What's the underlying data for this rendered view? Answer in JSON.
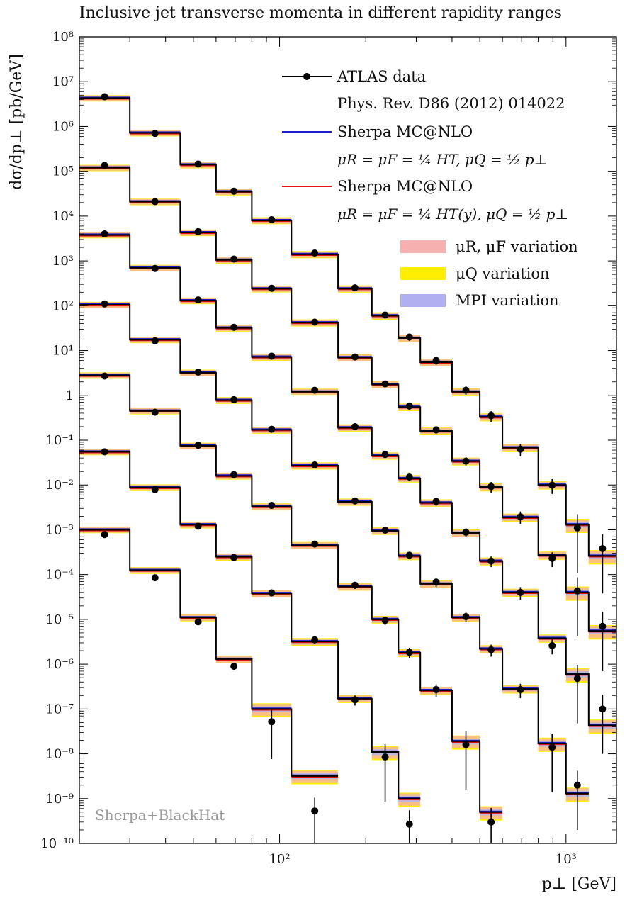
{
  "title": "Inclusive jet transverse momenta in different rapidity ranges",
  "watermark": "Sherpa+BlackHat",
  "legend": {
    "data_line1": "ATLAS data",
    "data_line2": "Phys. Rev. D86 (2012) 014022",
    "sherpa1_line1": "Sherpa MC@NLO",
    "sherpa1_line2": "μR = μF = ¼ HT,   μQ = ½ p⊥",
    "sherpa2_line1": "Sherpa MC@NLO",
    "sherpa2_line2": "μR = μF = ¼ HT(y),   μQ = ½ p⊥",
    "band_scale": "μR, μF variation",
    "band_q": "μQ variation",
    "band_mpi": "MPI variation"
  },
  "colors": {
    "data": "#000000",
    "sherpa1": "#1a1acc",
    "sherpa2": "#e01010",
    "band_scale": "#f7b0b0",
    "band_q": "#ffee00",
    "band_mpi": "#b0b0f0"
  },
  "chart_data": {
    "type": "line",
    "xlabel": "p⊥ [GeV]",
    "ylabel": "dσ/dp⊥ [pb/GeV]",
    "xscale": "log",
    "yscale": "log",
    "xlim": [
      20,
      1500
    ],
    "ylim": [
      1e-10,
      100000000.0
    ],
    "x_ticks": [
      100,
      1000
    ],
    "x_tick_labels": [
      "10²",
      "10³"
    ],
    "y_ticks": [
      1e-10,
      1e-09,
      1e-08,
      1e-07,
      1e-06,
      1e-05,
      0.0001,
      0.001,
      0.01,
      0.1,
      1,
      10,
      100,
      1000,
      10000,
      100000,
      1000000,
      10000000,
      100000000
    ],
    "y_tick_labels": [
      "10⁻¹⁰",
      "10⁻⁹",
      "10⁻⁸",
      "10⁻⁷",
      "10⁻⁶",
      "10⁻⁵",
      "10⁻⁴",
      "10⁻³",
      "10⁻²",
      "10⁻¹",
      "1",
      "10¹",
      "10²",
      "10³",
      "10⁴",
      "10⁵",
      "10⁶",
      "10⁷",
      "10⁸"
    ],
    "bin_edges": [
      20,
      30,
      45,
      60,
      80,
      110,
      160,
      210,
      260,
      310,
      400,
      500,
      600,
      800,
      1000,
      1200,
      1500
    ],
    "series": [
      {
        "first_bin": 0,
        "sherpa": [
          4300000.0,
          720000.0,
          140000.0,
          35000.0,
          8000.0,
          1400.0,
          240.0,
          60.0,
          19.0,
          5.5,
          1.2,
          0.33,
          0.068,
          0.01,
          0.0013,
          0.00026
        ],
        "data": [
          4600000.0,
          700000.0,
          145000.0,
          36000.0,
          8300.0,
          1500.0,
          250.0,
          62.0,
          20.0,
          6.0,
          1.3,
          0.35,
          0.063,
          0.0099,
          0.0011,
          0.00038
        ]
      },
      {
        "first_bin": 0,
        "sherpa": [
          120000.0,
          21000.0,
          4300.0,
          1050.0,
          240.0,
          42.0,
          7.0,
          1.75,
          0.55,
          0.16,
          0.034,
          0.009,
          0.0019,
          0.00027,
          4e-05,
          5.5e-06
        ],
        "data": [
          135000.0,
          21000.0,
          4500.0,
          1100.0,
          245.0,
          43.0,
          7.2,
          1.8,
          0.58,
          0.17,
          0.034,
          0.0092,
          0.00195,
          0.00023,
          4.3e-05,
          7e-06
        ]
      },
      {
        "first_bin": 0,
        "sherpa": [
          3800.0,
          700.0,
          130.0,
          32.0,
          7.2,
          1.2,
          0.19,
          0.045,
          0.014,
          0.004,
          0.00085,
          0.0002,
          4e-05,
          3.8e-06,
          6e-07,
          4.3e-08
        ],
        "data": [
          4000.0,
          680.0,
          135.0,
          33.0,
          7.5,
          1.3,
          0.2,
          0.048,
          0.015,
          0.0043,
          0.00088,
          0.0002,
          4e-05,
          2.6e-06,
          4.8e-07,
          1e-07
        ]
      },
      {
        "first_bin": 0,
        "sherpa": [
          105.0,
          17.5,
          3.2,
          0.78,
          0.17,
          0.027,
          0.0042,
          0.00095,
          0.00026,
          6.2e-05,
          1.1e-05,
          2.2e-06,
          2.8e-07,
          1.7e-08,
          1.3e-09
        ],
        "data": [
          110.0,
          16.5,
          3.3,
          0.8,
          0.175,
          0.028,
          0.0044,
          0.00098,
          0.00027,
          6.8e-05,
          1.15e-05,
          2.1e-06,
          2.7e-07,
          1.4e-08,
          2e-09
        ]
      },
      {
        "first_bin": 0,
        "sherpa": [
          2.8,
          0.45,
          0.075,
          0.016,
          0.0033,
          0.00045,
          5.4e-05,
          1e-05,
          1.8e-06,
          2.6e-07,
          1.9e-08,
          5e-10
        ],
        "data": [
          2.7,
          0.42,
          0.077,
          0.017,
          0.0035,
          0.00048,
          5.8e-05,
          9.5e-06,
          1.85e-06,
          2.7e-07,
          1.6e-08,
          3e-10
        ]
      },
      {
        "first_bin": 0,
        "sherpa": [
          0.055,
          0.0088,
          0.0013,
          0.00025,
          3.8e-05,
          3.2e-06,
          1.7e-07,
          1.1e-08,
          1e-09
        ],
        "data": [
          0.055,
          0.0079,
          0.0012,
          0.00024,
          3.9e-05,
          3.5e-06,
          1.6e-07,
          8.5e-09,
          2.7e-10
        ]
      },
      {
        "first_bin": 0,
        "sherpa": [
          0.001,
          0.000125,
          1.1e-05,
          1.3e-06,
          1e-07,
          3.2e-09
        ],
        "data": [
          0.00078,
          8.5e-05,
          8.8e-06,
          9e-07,
          5.2e-08,
          5.3e-10
        ]
      }
    ]
  }
}
